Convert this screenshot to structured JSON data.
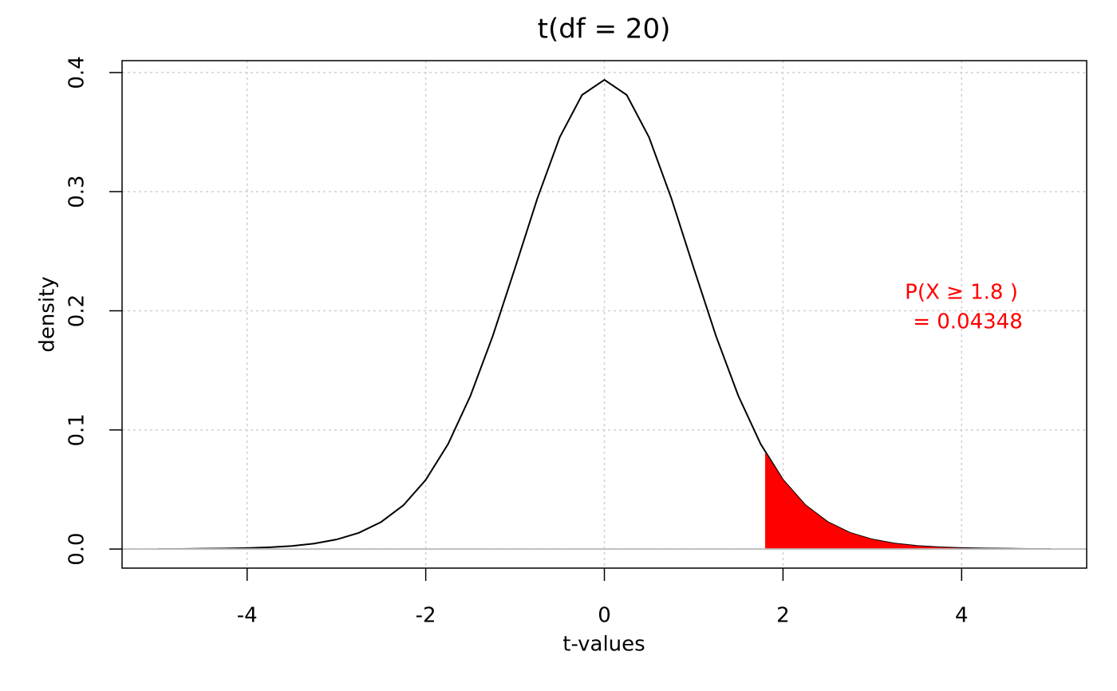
{
  "chart_data": {
    "type": "line",
    "title": "t(df = 20)",
    "x_label": "t-values",
    "y_label": "density",
    "annotations": [
      "P(X ≥ 1.8 )",
      "= 0.04348"
    ],
    "annotation_color": "#ff0000",
    "xlim": [
      -5.4,
      5.4
    ],
    "ylim": [
      -0.016,
      0.41
    ],
    "xticks": [
      -4,
      -2,
      0,
      2,
      4
    ],
    "yticks": [
      {
        "value": 0,
        "label": "0.0"
      },
      0.1,
      0.2,
      0.3,
      0.4
    ],
    "grid": true,
    "hline": 0,
    "series": [
      {
        "color": "#000000",
        "fill": false,
        "x": [
          -5,
          -4.75,
          -4.5,
          -4.25,
          -4,
          -3.75,
          -3.5,
          -3.25,
          -3,
          -2.75,
          -2.5,
          -2.25,
          -2,
          -1.75,
          -1.5,
          -1.25,
          -1,
          -0.75,
          -0.5,
          -0.25,
          0,
          0.25,
          0.5,
          0.75,
          1,
          1.25,
          1.5,
          1.75,
          2,
          2.25,
          2.5,
          2.75,
          3,
          3.25,
          3.5,
          3.75,
          4,
          4.25,
          4.5,
          4.75,
          5
        ],
        "values": [
          0.0001,
          0.0001,
          0.0003,
          0.0005,
          0.0008,
          0.0015,
          0.0026,
          0.0046,
          0.008,
          0.0136,
          0.0227,
          0.0368,
          0.0581,
          0.0881,
          0.1286,
          0.1788,
          0.236,
          0.2944,
          0.3457,
          0.3812,
          0.3939,
          0.3812,
          0.3457,
          0.2944,
          0.236,
          0.1788,
          0.1286,
          0.0881,
          0.0581,
          0.0368,
          0.0227,
          0.0136,
          0.008,
          0.0046,
          0.0026,
          0.0015,
          0.0008,
          0.0005,
          0.0003,
          0.0001,
          0.0001
        ]
      },
      {
        "color": "#ff0000",
        "fill": true,
        "x": [
          1.8,
          2,
          2.25,
          2.5,
          2.75,
          3,
          3.25,
          3.5,
          3.75,
          4,
          4.25,
          4.5,
          4.75,
          5
        ],
        "values": [
          0.0814,
          0.0581,
          0.0368,
          0.0227,
          0.0136,
          0.008,
          0.0046,
          0.0026,
          0.0015,
          0.0008,
          0.0005,
          0.0003,
          0.0001,
          0.0001
        ]
      }
    ]
  }
}
